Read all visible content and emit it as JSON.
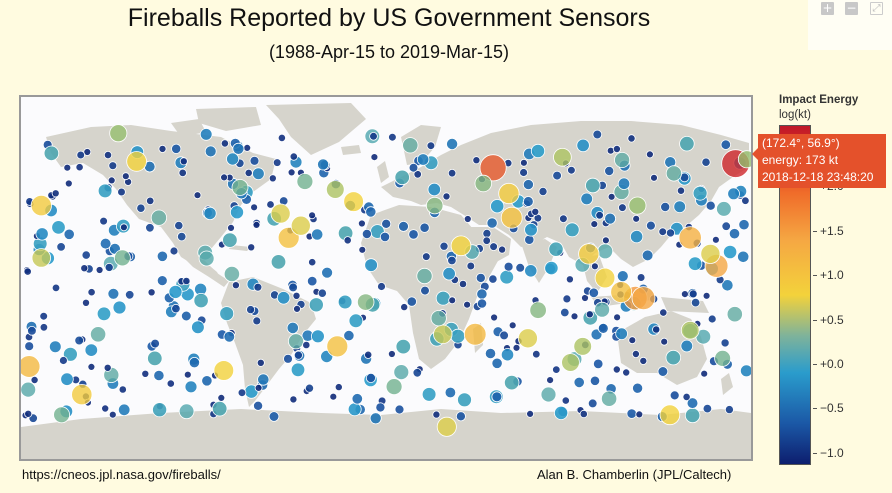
{
  "title": "Fireballs Reported by US Government Sensors",
  "subtitle": "(1988-Apr-15 to 2019-Mar-15)",
  "colorbar": {
    "title": "Impact Energy",
    "unit": "log(kt)",
    "ticks": [
      "+2.0",
      "+1.5",
      "+1.0",
      "+0.5",
      "+0.0",
      "−0.5",
      "−1.0"
    ]
  },
  "tooltip": {
    "coords": "(172.4°, 56.9°)",
    "energy": "energy: 173 kt",
    "datetime": "2018-12-18 23:48:20"
  },
  "footer": {
    "source_url": "https://cneos.jpl.nasa.gov/fireballs/",
    "credit": "Alan B. Chamberlin (JPL/Caltech)"
  },
  "toolbar": {
    "zoom_in_icon": "plus-icon",
    "zoom_out_icon": "minus-icon",
    "reset_icon": "expand-icon"
  },
  "colors": {
    "background": "#fffbe0",
    "land": "#d6d4cc",
    "ocean": "#fbfbfd",
    "tooltip": "#e4512b"
  },
  "chart_data": {
    "type": "scatter",
    "projection": "equirectangular",
    "x_range": [
      -180,
      180
    ],
    "y_range": [
      -90,
      90
    ],
    "color_scale": "log10 energy (kt)",
    "color_range": [
      -1.0,
      2.0
    ],
    "points": [
      {
        "lon": 172.4,
        "lat": 56.9,
        "e": 2.24
      },
      {
        "lon": 52.8,
        "lat": 54.8,
        "e": 2.0
      },
      {
        "lon": 60.6,
        "lat": 42.0,
        "e": 1.1
      },
      {
        "lon": 62.0,
        "lat": 30.0,
        "e": 1.2
      },
      {
        "lon": 150.0,
        "lat": 20.0,
        "e": 1.4
      },
      {
        "lon": 163.0,
        "lat": 6.0,
        "e": 1.5
      },
      {
        "lon": 123.0,
        "lat": -10.0,
        "e": 1.6
      },
      {
        "lon": 127.0,
        "lat": -10.0,
        "e": 1.5
      },
      {
        "lon": 116.0,
        "lat": -7.0,
        "e": 1.2
      },
      {
        "lon": 44.0,
        "lat": -28.0,
        "e": 1.3
      },
      {
        "lon": 100.0,
        "lat": 12.0,
        "e": 1.1
      },
      {
        "lon": 108.0,
        "lat": 0.0,
        "e": 1.0
      },
      {
        "lon": -16.0,
        "lat": 38.0,
        "e": 1.0
      },
      {
        "lon": -48.0,
        "lat": 20.0,
        "e": 1.2
      },
      {
        "lon": -24.0,
        "lat": -34.0,
        "e": 1.2
      },
      {
        "lon": -170.0,
        "lat": 36.0,
        "e": 1.1
      },
      {
        "lon": -176.0,
        "lat": -44.0,
        "e": 1.3
      },
      {
        "lon": -150.0,
        "lat": -58.0,
        "e": 1.1
      },
      {
        "lon": 30.0,
        "lat": -74.0,
        "e": 0.9
      },
      {
        "lon": 140.0,
        "lat": -68.0,
        "e": 1.0
      },
      {
        "lon": -123.0,
        "lat": 58.0,
        "e": 1.0
      },
      {
        "lon": 70.0,
        "lat": -30.0,
        "e": 0.9
      },
      {
        "lon": -52.0,
        "lat": 32.0,
        "e": 0.9
      },
      {
        "lon": -80.0,
        "lat": -46.0,
        "e": 1.0
      },
      {
        "lon": 37.0,
        "lat": 16.0,
        "e": 1.0
      },
      {
        "lon": -132.0,
        "lat": 72.0,
        "e": 0.6
      },
      {
        "lon": 87.0,
        "lat": 60.0,
        "e": 0.7
      },
      {
        "lon": 178.0,
        "lat": 59.0,
        "e": 0.6
      },
      {
        "lon": 97.0,
        "lat": -34.0,
        "e": 0.7
      },
      {
        "lon": -42.0,
        "lat": 26.0,
        "e": 0.9
      },
      {
        "lon": -170.0,
        "lat": 10.0,
        "e": 0.8
      },
      {
        "lon": 28.0,
        "lat": -28.0,
        "e": 0.8
      },
      {
        "lon": -25.0,
        "lat": 44.0,
        "e": 0.7
      },
      {
        "lon": 48.0,
        "lat": 47.0,
        "e": 0.5
      },
      {
        "lon": 124.0,
        "lat": 36.0,
        "e": 0.6
      },
      {
        "lon": -130.0,
        "lat": 10.0,
        "e": 0.4
      },
      {
        "lon": 24.0,
        "lat": 36.0,
        "e": 0.5
      },
      {
        "lon": 160.0,
        "lat": 12.0,
        "e": 0.9
      },
      {
        "lon": 150.0,
        "lat": -26.0,
        "e": 0.7
      },
      {
        "lon": 172.0,
        "lat": -18.0,
        "e": 0.3
      },
      {
        "lon": 91.0,
        "lat": -42.0,
        "e": 0.7
      },
      {
        "lon": 4.0,
        "lat": -54.0,
        "e": 0.4
      },
      {
        "lon": -142.0,
        "lat": -28.0,
        "e": 0.3
      },
      {
        "lon": -112.0,
        "lat": 30.0,
        "e": 0.3
      },
      {
        "lon": -40.0,
        "lat": 48.0,
        "e": 0.4
      },
      {
        "lon": -10.0,
        "lat": -12.0,
        "e": 0.5
      },
      {
        "lon": 102.0,
        "lat": 46.0,
        "e": 0.2
      },
      {
        "lon": 19.0,
        "lat": 1.0,
        "e": 0.3
      },
      {
        "lon": -72.0,
        "lat": 45.0,
        "e": 0.4
      },
      {
        "lon": -76.0,
        "lat": 2.0,
        "e": 0.3
      },
      {
        "lon": -165.0,
        "lat": 62.0,
        "e": 0.2
      },
      {
        "lon": 12.0,
        "lat": 66.0,
        "e": 0.3
      },
      {
        "lon": 166.0,
        "lat": -40.0,
        "e": 0.4
      },
      {
        "lon": -114.0,
        "lat": -40.0,
        "e": 0.2
      },
      {
        "lon": 26.0,
        "lat": -20.0,
        "e": 0.3
      },
      {
        "lon": -160.0,
        "lat": -68.0,
        "e": 0.4
      },
      {
        "lon": -53.0,
        "lat": 8.0,
        "e": 0.2
      },
      {
        "lon": 75.0,
        "lat": -16.0,
        "e": 0.5
      },
      {
        "lon": 62.0,
        "lat": -52.0,
        "e": 0.2
      },
      {
        "lon": 142.0,
        "lat": 52.0,
        "e": 0.3
      },
      {
        "lon": 8.0,
        "lat": 50.0,
        "e": 0.2
      },
      {
        "lon": -82.0,
        "lat": -65.0,
        "e": 0.2
      },
      {
        "lon": 110.0,
        "lat": -60.0,
        "e": 0.3
      }
    ]
  }
}
